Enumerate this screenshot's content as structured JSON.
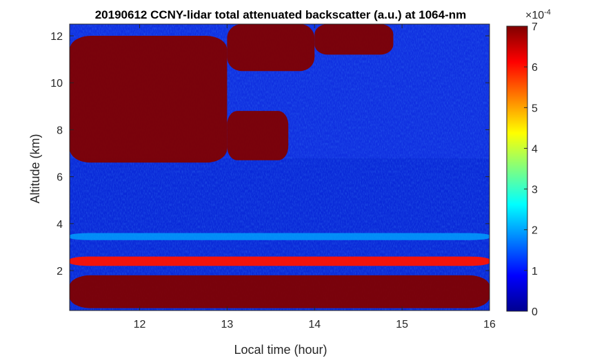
{
  "chart_data": {
    "type": "heatmap",
    "title": "20190612 CCNY-lidar total attenuated backscatter (a.u.) at 1064-nm",
    "xlabel": "Local time (hour)",
    "ylabel": "Altitude (km)",
    "xlim": [
      11.2,
      16.0
    ],
    "ylim": [
      0.3,
      12.5
    ],
    "xticks": [
      12,
      13,
      14,
      15,
      16
    ],
    "yticks": [
      2,
      4,
      6,
      8,
      10,
      12
    ],
    "colorbar": {
      "clim": [
        0,
        7
      ],
      "ticks": [
        0,
        1,
        2,
        3,
        4,
        5,
        6,
        7
      ],
      "exponent_label": "×10",
      "exponent_power": "-4",
      "colormap": "jet"
    },
    "features": [
      {
        "name": "boundary-layer aerosol",
        "x_range": [
          11.2,
          16.0
        ],
        "altitude_range": [
          0.4,
          1.8
        ],
        "peak_value": 7
      },
      {
        "name": "aerosol layer",
        "x_range": [
          11.2,
          16.0
        ],
        "altitude_range": [
          2.2,
          2.6
        ],
        "peak_value": 6
      },
      {
        "name": "thin layer",
        "x_range": [
          11.2,
          16.0
        ],
        "altitude_range": [
          3.3,
          3.6
        ],
        "peak_value": 2
      },
      {
        "name": "thick cloud",
        "x_range": [
          11.2,
          13.0
        ],
        "altitude_range": [
          6.6,
          12.0
        ],
        "peak_value": 7
      },
      {
        "name": "thick cloud",
        "x_range": [
          13.0,
          13.7
        ],
        "altitude_range": [
          6.7,
          8.8
        ],
        "peak_value": 7
      },
      {
        "name": "high cloud",
        "x_range": [
          13.0,
          14.0
        ],
        "altitude_range": [
          10.5,
          12.5
        ],
        "peak_value": 7
      },
      {
        "name": "high cloud",
        "x_range": [
          14.0,
          14.9
        ],
        "altitude_range": [
          11.2,
          12.5
        ],
        "peak_value": 7
      }
    ]
  }
}
